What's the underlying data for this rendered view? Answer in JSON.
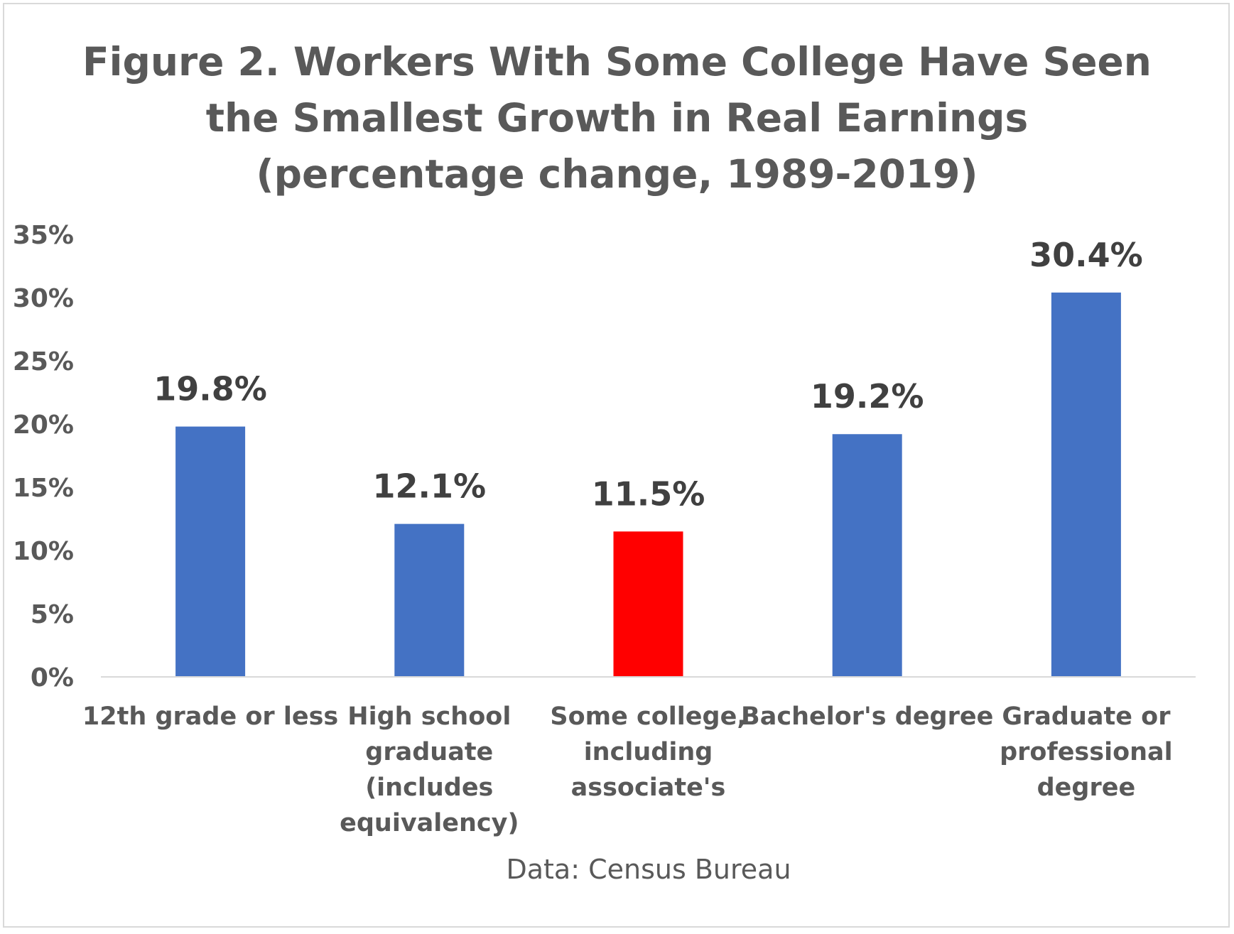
{
  "chart_data": {
    "type": "bar",
    "title_lines": [
      "Figure 2. Workers With Some College Have Seen",
      "the Smallest Growth in Real Earnings",
      "(percentage change, 1989-2019)"
    ],
    "categories": [
      [
        "12th grade or less"
      ],
      [
        "High school",
        "graduate",
        "(includes",
        "equivalency)"
      ],
      [
        "Some college,",
        "including",
        "associate's"
      ],
      [
        "Bachelor's degree"
      ],
      [
        "Graduate or",
        "professional",
        "degree"
      ]
    ],
    "values": [
      19.8,
      12.1,
      11.5,
      19.2,
      30.4
    ],
    "data_labels": [
      "19.8%",
      "12.1%",
      "11.5%",
      "19.2%",
      "30.4%"
    ],
    "bar_colors": [
      "#4472C4",
      "#4472C4",
      "#FF0000",
      "#4472C4",
      "#4472C4"
    ],
    "yticks": [
      {
        "value": 0,
        "label": "0%"
      },
      {
        "value": 5,
        "label": "5%"
      },
      {
        "value": 10,
        "label": "10%"
      },
      {
        "value": 15,
        "label": "15%"
      },
      {
        "value": 20,
        "label": "20%"
      },
      {
        "value": 25,
        "label": "25%"
      },
      {
        "value": 30,
        "label": "30%"
      },
      {
        "value": 35,
        "label": "35%"
      }
    ],
    "ylim": [
      0,
      35
    ],
    "grid": false,
    "legend": "none",
    "source": "Data: Census Bureau"
  }
}
